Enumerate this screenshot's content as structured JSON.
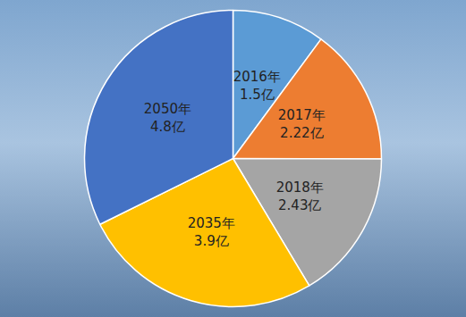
{
  "chart_data": {
    "type": "pie",
    "categories": [
      "2016年",
      "2017年",
      "2018年",
      "2035年",
      "2050年"
    ],
    "values": [
      1.5,
      2.22,
      2.43,
      3.9,
      4.8
    ],
    "value_labels": [
      "1.5亿",
      "2.22亿",
      "2.43亿",
      "3.9亿",
      "4.8亿"
    ],
    "colors": [
      "#5b9bd5",
      "#ed7d31",
      "#a5a5a5",
      "#ffc000",
      "#4472c4"
    ],
    "data_labels": true
  }
}
